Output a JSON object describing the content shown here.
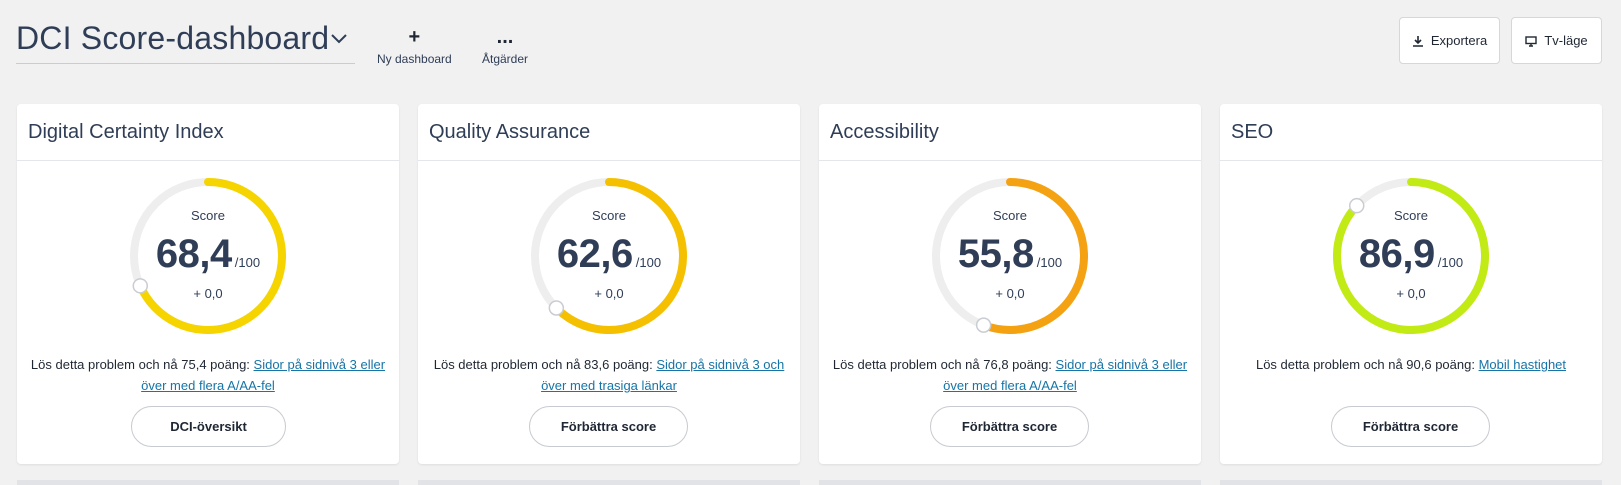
{
  "header": {
    "title": "DCI Score-dashboard",
    "new_dashboard": {
      "glyph": "+",
      "label": "Ny dashboard"
    },
    "actions": {
      "glyph": "...",
      "label": "Åtgärder"
    },
    "export_label": "Exportera",
    "tv_label": "Tv-läge"
  },
  "cards": [
    {
      "title": "Digital Certainty Index",
      "score_label": "Score",
      "score": "68,4",
      "max": "/100",
      "delta": "+ 0,0",
      "fraction": 0.684,
      "color": "#f5d400",
      "tip_prefix": "Lös detta problem och nå 75,4 poäng: ",
      "tip_link": "Sidor på sidnivå 3 eller över med flera A/AA-fel",
      "button": "DCI-översikt"
    },
    {
      "title": "Quality Assurance",
      "score_label": "Score",
      "score": "62,6",
      "max": "/100",
      "delta": "+ 0,0",
      "fraction": 0.626,
      "color": "#f5c000",
      "tip_prefix": "Lös detta problem och nå 83,6 poäng: ",
      "tip_link": "Sidor på sidnivå 3 och över med trasiga länkar",
      "button": "Förbättra score"
    },
    {
      "title": "Accessibility",
      "score_label": "Score",
      "score": "55,8",
      "max": "/100",
      "delta": "+ 0,0",
      "fraction": 0.558,
      "color": "#f5a212",
      "tip_prefix": "Lös detta problem och nå 76,8 poäng: ",
      "tip_link": "Sidor på sidnivå 3 eller över med flera A/AA-fel",
      "button": "Förbättra score"
    },
    {
      "title": "SEO",
      "score_label": "Score",
      "score": "86,9",
      "max": "/100",
      "delta": "+ 0,0",
      "fraction": 0.869,
      "color": "#c2ea14",
      "tip_prefix": "Lös detta problem och nå 90,6 poäng: ",
      "tip_link": "Mobil hastighet",
      "button": "Förbättra score"
    }
  ]
}
